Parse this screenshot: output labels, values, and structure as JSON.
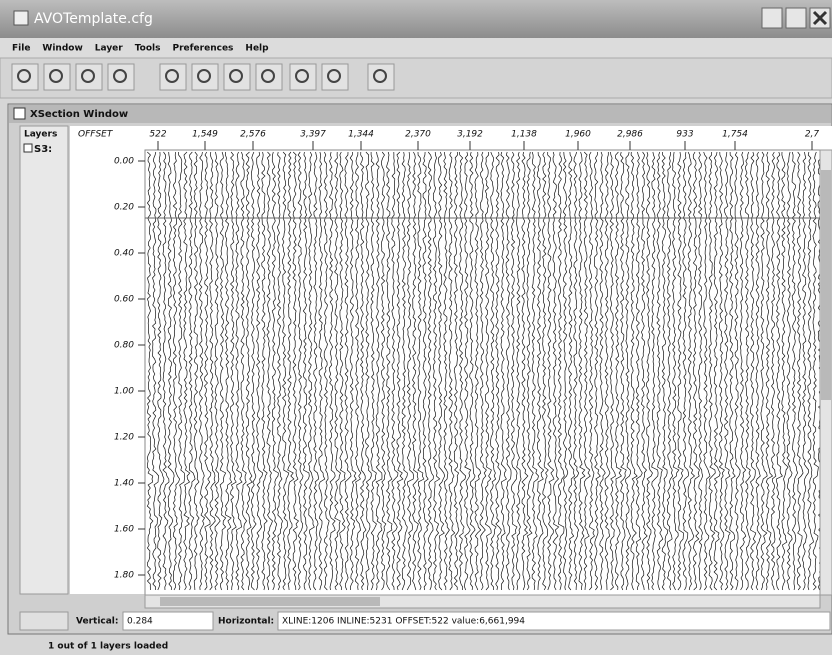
{
  "window": {
    "title": "AVOTemplate.cfg"
  },
  "menu": [
    "File",
    "Window",
    "Layer",
    "Tools",
    "Preferences",
    "Help"
  ],
  "xsection": {
    "title": "XSection Window",
    "layers_label": "Layers",
    "layer": "S3:",
    "offset_label": "OFFSET",
    "offsets": [
      "522",
      "1,549",
      "2,576",
      "3,397",
      "1,344",
      "2,370",
      "3,192",
      "1,138",
      "1,960",
      "2,986",
      "933",
      "1,754",
      "2,7"
    ],
    "times": [
      "0.00",
      "0.20",
      "0.40",
      "0.60",
      "0.80",
      "1.00",
      "1.20",
      "1.40",
      "1.60",
      "1.80"
    ]
  },
  "status": {
    "vertical_label": "Vertical:",
    "vertical_value": "0.284",
    "horizontal_label": "Horizontal:",
    "horizontal_value": "XLINE:1206 INLINE:5231 OFFSET:522 value:6,661,994"
  },
  "footer": "1 out of 1 layers loaded"
}
